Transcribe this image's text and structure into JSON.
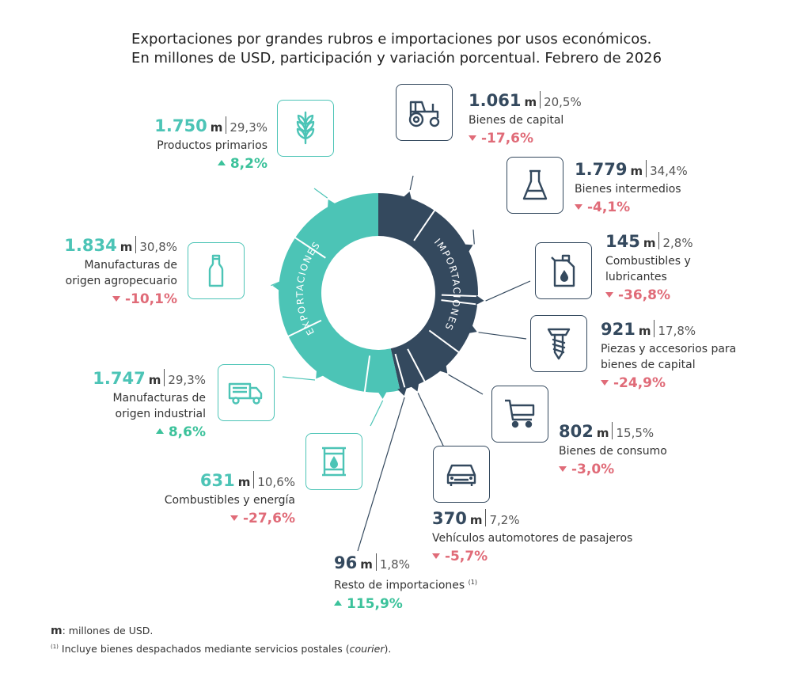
{
  "title_line1": "Exportaciones por grandes rubros e importaciones por usos económicos.",
  "title_line2": "En millones de USD, participación y variación porcentual. Febrero de 2026",
  "ring_labels": {
    "exports": "EXPORTACIONES",
    "imports": "IMPORTACIONES"
  },
  "unit": "m",
  "colors": {
    "exports": "#4cc4b6",
    "imports": "#34495e",
    "positive": "#3cc29b",
    "negative": "#e06b78"
  },
  "chart_data": {
    "type": "pie",
    "exports": [
      {
        "name": "Productos primarios",
        "value": "1.750",
        "share": "29,3%",
        "variation": "8,2%",
        "direction": "up",
        "icon": "wheat-icon"
      },
      {
        "name": "Manufacturas de origen agropecuario",
        "value": "1.834",
        "share": "30,8%",
        "variation": "-10,1%",
        "direction": "down",
        "icon": "bottle-icon"
      },
      {
        "name": "Manufacturas de origen industrial",
        "value": "1.747",
        "share": "29,3%",
        "variation": "8,6%",
        "direction": "up",
        "icon": "truck-icon"
      },
      {
        "name": "Combustibles y energía",
        "value": "631",
        "share": "10,6%",
        "variation": "-27,6%",
        "direction": "down",
        "icon": "oil-barrel-icon"
      }
    ],
    "imports": [
      {
        "name": "Bienes de capital",
        "value": "1.061",
        "share": "20,5%",
        "variation": "-17,6%",
        "direction": "down",
        "icon": "tractor-icon"
      },
      {
        "name": "Bienes intermedios",
        "value": "1.779",
        "share": "34,4%",
        "variation": "-4,1%",
        "direction": "down",
        "icon": "flask-icon"
      },
      {
        "name": "Combustibles y lubricantes",
        "value": "145",
        "share": "2,8%",
        "variation": "-36,8%",
        "direction": "down",
        "icon": "oil-can-icon"
      },
      {
        "name": "Piezas y accesorios para bienes de capital",
        "value": "921",
        "share": "17,8%",
        "variation": "-24,9%",
        "direction": "down",
        "icon": "screw-icon"
      },
      {
        "name": "Bienes de consumo",
        "value": "802",
        "share": "15,5%",
        "variation": "-3,0%",
        "direction": "down",
        "icon": "cart-icon"
      },
      {
        "name": "Vehículos automotores de pasajeros",
        "value": "370",
        "share": "7,2%",
        "variation": "-5,7%",
        "direction": "down",
        "icon": "car-icon"
      },
      {
        "name": "Resto de importaciones",
        "value": "96",
        "share": "1,8%",
        "variation": "115,9%",
        "direction": "up",
        "icon": "none"
      }
    ],
    "export_shares": [
      29.3,
      30.8,
      29.3,
      10.6
    ],
    "import_shares": [
      20.5,
      34.4,
      2.8,
      17.8,
      15.5,
      7.2,
      1.8
    ],
    "exports_total_share": 53.5,
    "imports_total_share": 46.5
  },
  "labels": {
    "productos_primarios": "Productos primarios",
    "moa_1": "Manufacturas de",
    "moa_2": "origen agropecuario",
    "moi_1": "Manufacturas de",
    "moi_2": "origen industrial",
    "combustibles_energia": "Combustibles y energía",
    "bienes_capital": "Bienes de capital",
    "bienes_intermedios": "Bienes intermedios",
    "combustibles_lubricantes_1": "Combustibles y",
    "combustibles_lubricantes_2": "lubricantes",
    "piezas_1": "Piezas y accesorios para",
    "piezas_2": "bienes de capital",
    "bienes_consumo": "Bienes de consumo",
    "vehiculos": "Vehículos automotores de pasajeros",
    "resto": "Resto de importaciones",
    "resto_note": "(1)"
  },
  "footer": {
    "unit_key": "m",
    "unit_text": ": millones de USD.",
    "note_mark": "(1)",
    "note_text_1": " Incluye bienes despachados mediante servicios postales (",
    "note_italic": "courier",
    "note_text_2": ")."
  }
}
